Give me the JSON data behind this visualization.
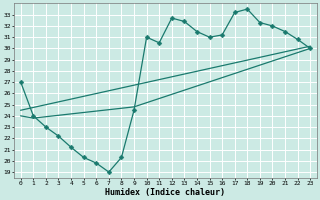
{
  "xlabel": "Humidex (Indice chaleur)",
  "background_color": "#cceae4",
  "line_color": "#1a7a6e",
  "grid_color": "#ffffff",
  "xlim": [
    -0.5,
    23.5
  ],
  "ylim": [
    18.5,
    34.0
  ],
  "xticks": [
    0,
    1,
    2,
    3,
    4,
    5,
    6,
    7,
    8,
    9,
    10,
    11,
    12,
    13,
    14,
    15,
    16,
    17,
    18,
    19,
    20,
    21,
    22,
    23
  ],
  "yticks": [
    19,
    20,
    21,
    22,
    23,
    24,
    25,
    26,
    27,
    28,
    29,
    30,
    31,
    32,
    33
  ],
  "line1_x": [
    0,
    1,
    2,
    3,
    4,
    5,
    6,
    7,
    8,
    9,
    10,
    11,
    12,
    13,
    14,
    15,
    16,
    17,
    18,
    19,
    20,
    21,
    22,
    23
  ],
  "line1_y": [
    27.0,
    24.0,
    23.0,
    22.2,
    21.2,
    20.3,
    19.8,
    19.0,
    20.3,
    24.5,
    31.0,
    30.5,
    32.7,
    32.4,
    31.5,
    31.0,
    31.2,
    33.2,
    33.5,
    32.3,
    32.0,
    31.5,
    30.8,
    30.0
  ],
  "line2_x": [
    0,
    23
  ],
  "line2_y": [
    24.5,
    30.2
  ],
  "line3_x": [
    0,
    1,
    9,
    23
  ],
  "line3_y": [
    24.0,
    23.8,
    24.8,
    30.0
  ],
  "marker_style": "D",
  "markersize": 2.5,
  "linewidth": 0.9
}
